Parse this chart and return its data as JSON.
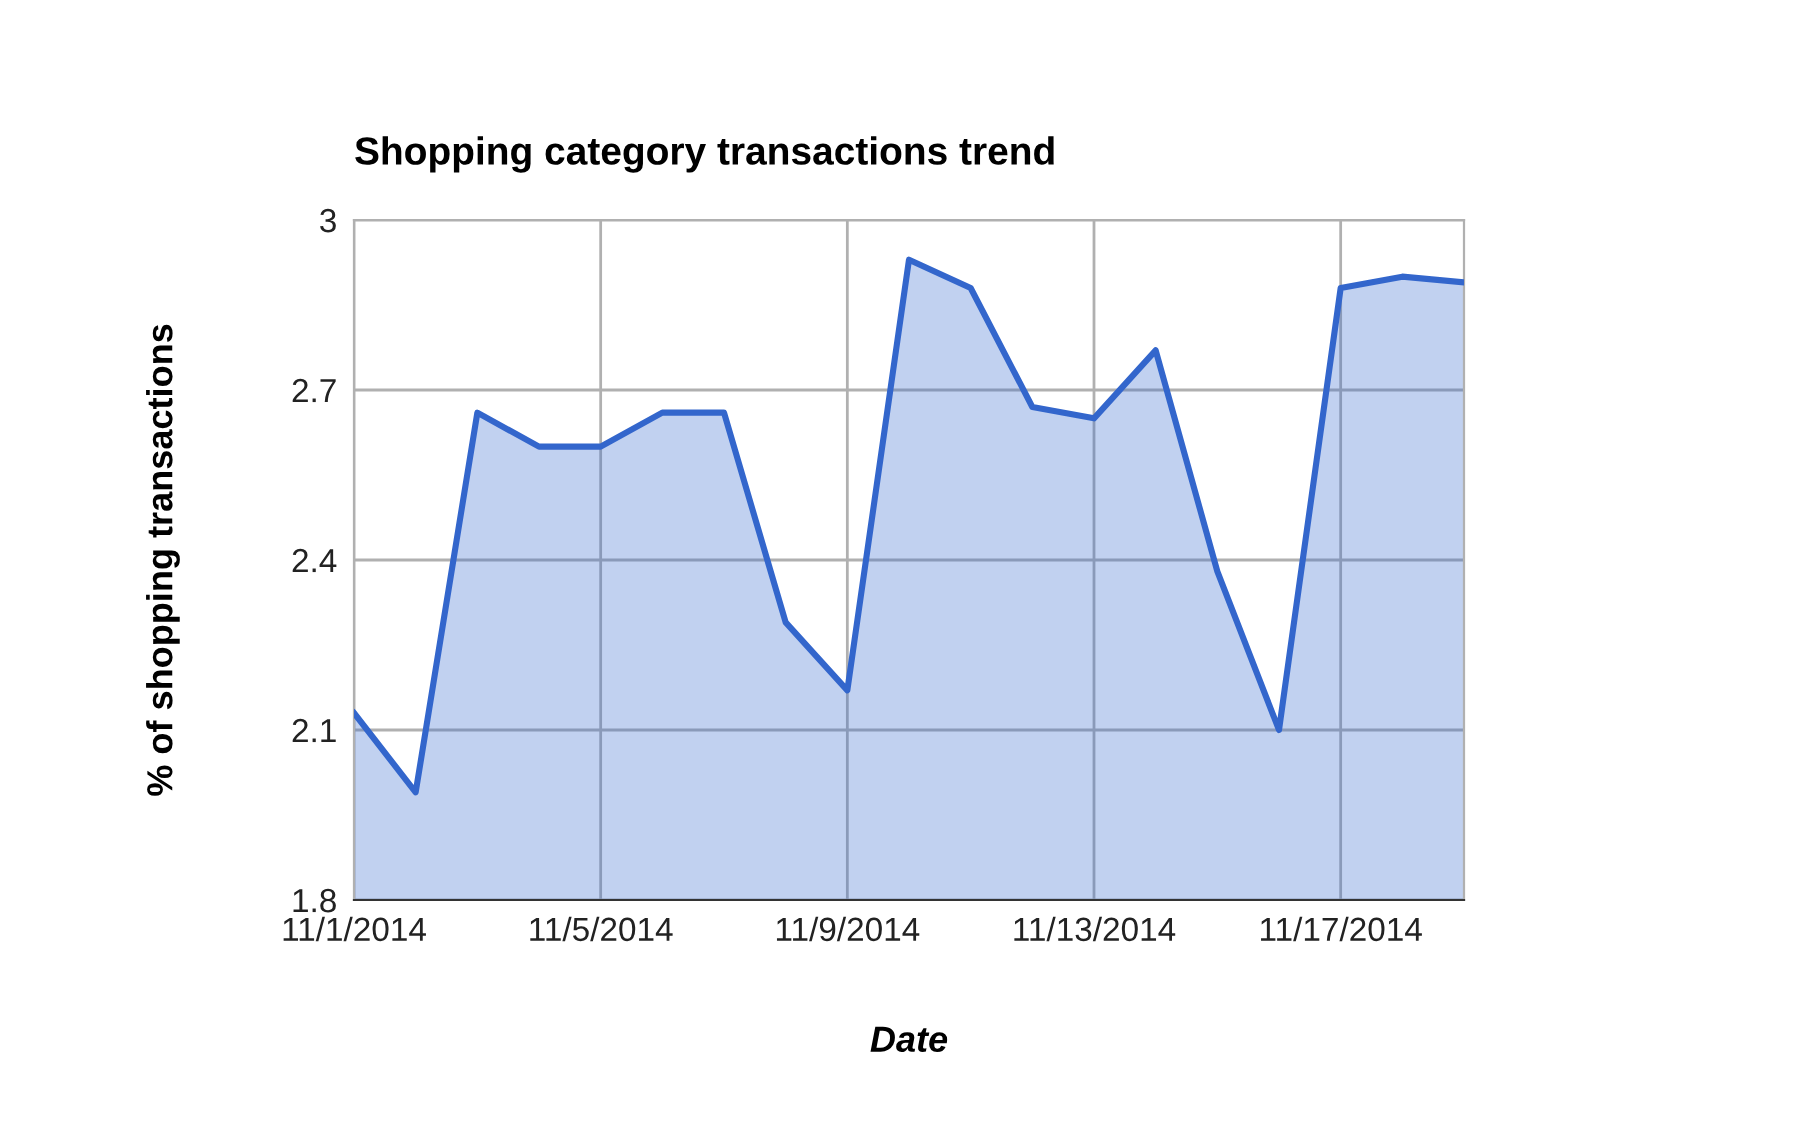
{
  "chart_data": {
    "type": "area",
    "title": "Shopping category transactions trend",
    "xlabel": "Date",
    "ylabel": "% of shopping transactions",
    "x": [
      "2014-11-01",
      "2014-11-02",
      "2014-11-03",
      "2014-11-04",
      "2014-11-05",
      "2014-11-06",
      "2014-11-07",
      "2014-11-08",
      "2014-11-09",
      "2014-11-10",
      "2014-11-11",
      "2014-11-12",
      "2014-11-13",
      "2014-11-14",
      "2014-11-15",
      "2014-11-16",
      "2014-11-17",
      "2014-11-18",
      "2014-11-19"
    ],
    "series": [
      {
        "color": "#3366cc",
        "values": [
          2.13,
          1.99,
          2.66,
          2.6,
          2.6,
          2.66,
          2.66,
          2.29,
          2.17,
          2.93,
          2.88,
          2.67,
          2.65,
          2.77,
          2.38,
          2.1,
          2.88,
          2.9,
          2.89
        ]
      }
    ],
    "xlim": [
      "2014-11-01",
      "2014-11-19"
    ],
    "xticks": [
      {
        "value": "2014-11-01",
        "label": "11/1/2014"
      },
      {
        "value": "2014-11-05",
        "label": "11/5/2014"
      },
      {
        "value": "2014-11-09",
        "label": "11/9/2014"
      },
      {
        "value": "2014-11-13",
        "label": "11/13/2014"
      },
      {
        "value": "2014-11-17",
        "label": "11/17/2014"
      }
    ],
    "ylim": [
      1.8,
      3
    ],
    "yticks": [
      1.8,
      2.1,
      2.4,
      2.7,
      3
    ],
    "grid": true,
    "legend": false
  }
}
